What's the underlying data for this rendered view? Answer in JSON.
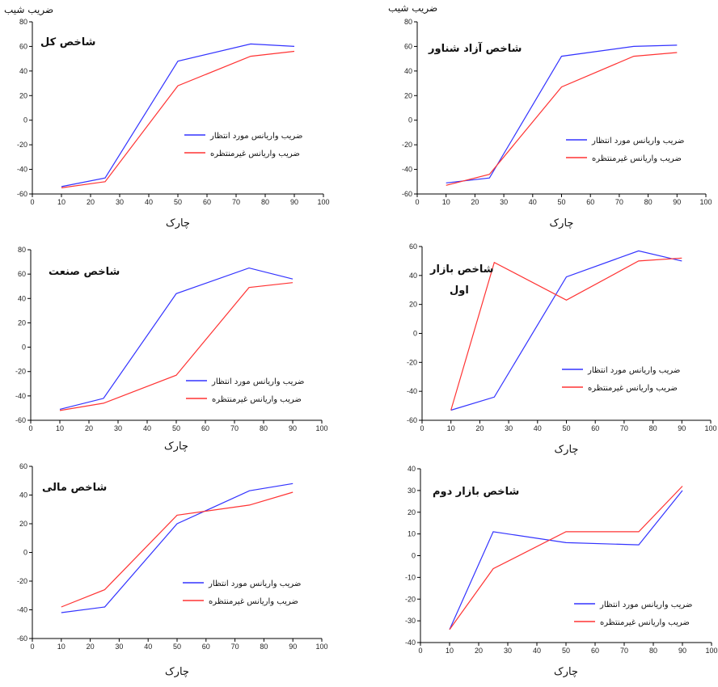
{
  "colors": {
    "expected": "#3333ff",
    "unexpected": "#ff3333",
    "axis": "#000000"
  },
  "chart_data": [
    {
      "type": "line",
      "title": "شاخص کل",
      "ylabel": "ضریب شیب",
      "xlabel": "چارک",
      "xlim": [
        0,
        100
      ],
      "ylim": [
        -60,
        80
      ],
      "xticks": [
        0,
        10,
        20,
        30,
        40,
        50,
        60,
        70,
        80,
        90,
        100
      ],
      "yticks": [
        -60,
        -40,
        -20,
        0,
        20,
        40,
        60,
        80
      ],
      "x": [
        10,
        25,
        50,
        75,
        90
      ],
      "series": [
        {
          "name": "ضریب واریانس مورد انتظار",
          "color": "expected",
          "values": [
            -54,
            -47,
            48,
            62,
            60
          ]
        },
        {
          "name": "ضریب واریانس غیرمنتظره",
          "color": "unexpected",
          "values": [
            -55,
            -50,
            28,
            52,
            56
          ]
        }
      ]
    },
    {
      "type": "line",
      "title": "شاخص آزاد شناور",
      "ylabel": "ضریب شیب",
      "xlabel": "چارک",
      "xlim": [
        0,
        100
      ],
      "ylim": [
        -60,
        80
      ],
      "xticks": [
        0,
        10,
        20,
        30,
        40,
        50,
        60,
        70,
        80,
        90,
        100
      ],
      "yticks": [
        -60,
        -40,
        -20,
        0,
        20,
        40,
        60,
        80
      ],
      "x": [
        10,
        25,
        50,
        75,
        90
      ],
      "series": [
        {
          "name": "ضریب واریانس مورد انتظار",
          "color": "expected",
          "values": [
            -51,
            -47,
            52,
            60,
            61
          ]
        },
        {
          "name": "ضریب واریانس غیرمنتظره",
          "color": "unexpected",
          "values": [
            -53,
            -44,
            27,
            52,
            55
          ]
        }
      ]
    },
    {
      "type": "line",
      "title": "شاخص صنعت",
      "ylabel": "",
      "xlabel": "چارک",
      "xlim": [
        0,
        100
      ],
      "ylim": [
        -60,
        80
      ],
      "xticks": [
        0,
        10,
        20,
        30,
        40,
        50,
        60,
        70,
        80,
        90,
        100
      ],
      "yticks": [
        -60,
        -40,
        -20,
        0,
        20,
        40,
        60,
        80
      ],
      "x": [
        10,
        25,
        50,
        75,
        90
      ],
      "series": [
        {
          "name": "ضریب واریانس مورد انتظار",
          "color": "expected",
          "values": [
            -51,
            -42,
            44,
            65,
            56
          ]
        },
        {
          "name": "ضریب واریانس غیرمنتظره",
          "color": "unexpected",
          "values": [
            -52,
            -46,
            -23,
            49,
            53
          ]
        }
      ]
    },
    {
      "type": "line",
      "title": "شاخص بازار",
      "title2": "اول",
      "ylabel": "",
      "xlabel": "چارک",
      "xlim": [
        0,
        100
      ],
      "ylim": [
        -60,
        60
      ],
      "xticks": [
        0,
        10,
        20,
        30,
        40,
        50,
        60,
        70,
        80,
        90,
        100
      ],
      "yticks": [
        -60,
        -40,
        -20,
        0,
        20,
        40,
        60
      ],
      "x": [
        10,
        25,
        50,
        75,
        90
      ],
      "series": [
        {
          "name": "ضریب واریانس مورد انتظار",
          "color": "expected",
          "values": [
            -53,
            -44,
            39,
            57,
            50
          ]
        },
        {
          "name": "ضریب واریانس غیرمنتظره",
          "color": "unexpected",
          "values": [
            -53,
            49,
            23,
            50,
            52
          ]
        }
      ]
    },
    {
      "type": "line",
      "title": "شاخص مالی",
      "ylabel": "",
      "xlabel": "چارک",
      "xlim": [
        0,
        100
      ],
      "ylim": [
        -60,
        60
      ],
      "xticks": [
        0,
        10,
        20,
        30,
        40,
        50,
        60,
        70,
        80,
        90,
        100
      ],
      "yticks": [
        -60,
        -40,
        -20,
        0,
        20,
        40,
        60
      ],
      "x": [
        10,
        25,
        50,
        75,
        90
      ],
      "series": [
        {
          "name": "ضریب واریانس مورد انتظار",
          "color": "expected",
          "values": [
            -42,
            -38,
            20,
            43,
            48
          ]
        },
        {
          "name": "ضریب واریانس غیرمنتظره",
          "color": "unexpected",
          "values": [
            -38,
            -26,
            26,
            33,
            42
          ]
        }
      ]
    },
    {
      "type": "line",
      "title": "شاخص بازار دوم",
      "ylabel": "",
      "xlabel": "چارک",
      "xlim": [
        0,
        100
      ],
      "ylim": [
        -40,
        40
      ],
      "xticks": [
        0,
        10,
        20,
        30,
        40,
        50,
        60,
        70,
        80,
        90,
        100
      ],
      "yticks": [
        -40,
        -30,
        -20,
        -10,
        0,
        10,
        20,
        30,
        40
      ],
      "x": [
        10,
        25,
        50,
        75,
        90
      ],
      "series": [
        {
          "name": "ضریب واریانس مورد انتظار",
          "color": "expected",
          "values": [
            -34,
            11,
            6,
            5,
            30
          ]
        },
        {
          "name": "ضریب واریانس غیرمنتظره",
          "color": "unexpected",
          "values": [
            -34,
            -6,
            11,
            11,
            32
          ]
        }
      ]
    }
  ]
}
